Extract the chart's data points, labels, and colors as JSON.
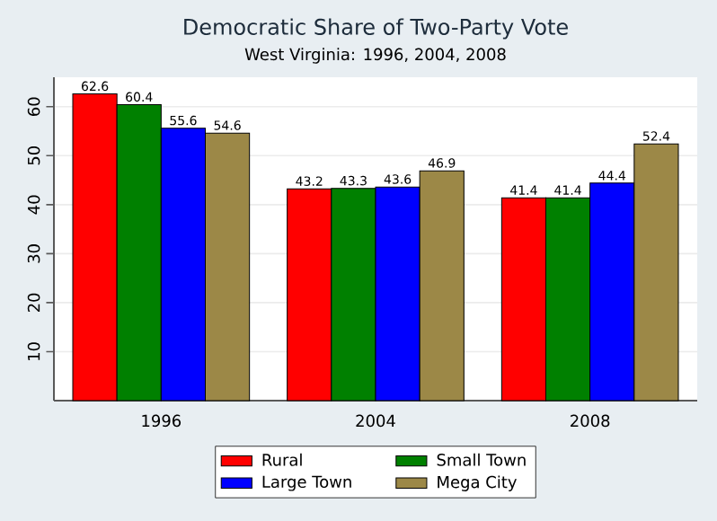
{
  "chart_data": {
    "type": "bar",
    "title": "Democratic Share of Two-Party Vote",
    "subtitle": "West Virginia: 1996, 2004, 2008",
    "categories": [
      "1996",
      "2004",
      "2008"
    ],
    "series": [
      {
        "name": "Rural",
        "color": "#ff0000",
        "values": [
          62.6,
          43.2,
          41.4
        ]
      },
      {
        "name": "Small Town",
        "color": "#008000",
        "values": [
          60.4,
          43.3,
          41.4
        ]
      },
      {
        "name": "Large Town",
        "color": "#0000ff",
        "values": [
          55.6,
          43.6,
          44.4
        ]
      },
      {
        "name": "Mega City",
        "color": "#9c8847",
        "values": [
          54.6,
          46.9,
          52.4
        ]
      }
    ],
    "ylim": [
      0,
      66
    ],
    "yticks": [
      10,
      20,
      30,
      40,
      50,
      60
    ],
    "grid": "y",
    "legend": "bottom",
    "data_labels": true
  }
}
